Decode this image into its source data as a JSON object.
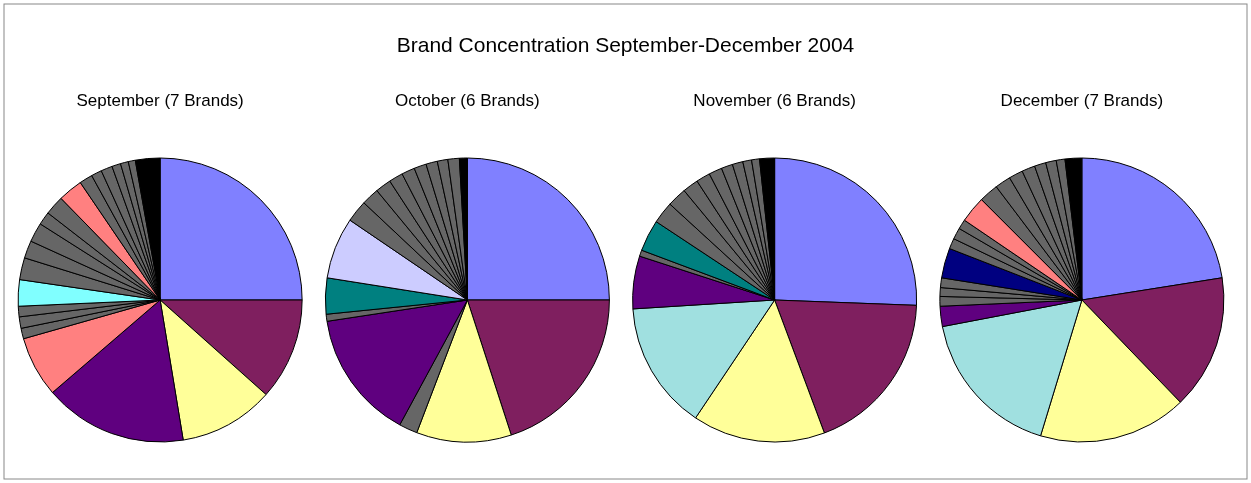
{
  "chart_data": [
    {
      "type": "pie",
      "title": "September (7 Brands)",
      "annotations": [
        "Brand Concentration September-December 2004"
      ],
      "categories": [
        null,
        null,
        null,
        null,
        null,
        null,
        null,
        null,
        null,
        null,
        null,
        null,
        null,
        null,
        null,
        null,
        null,
        null,
        null,
        null,
        null,
        null
      ],
      "values": [
        25,
        11.6,
        10.8,
        16.3,
        6.9,
        1.2,
        1.3,
        1.2,
        3.0,
        2.5,
        2.0,
        2.2,
        1.5,
        2.2,
        2.8,
        1.5,
        1.2,
        1.3,
        1.0,
        0.9,
        0.8,
        2.8
      ],
      "colors": [
        "#8080ff",
        "#7f1f5f",
        "#ffff99",
        "#5f007f",
        "#ff8080",
        "#666666",
        "#666666",
        "#666666",
        "#80ffff",
        "#666666",
        "#666666",
        "#666666",
        "#666666",
        "#666666",
        "#ff8080",
        "#666666",
        "#666666",
        "#666666",
        "#666666",
        "#666666",
        "#666666",
        "#000000"
      ]
    },
    {
      "type": "pie",
      "title": "October (6 Brands)",
      "categories": [
        null,
        null,
        null,
        null,
        null,
        null,
        null,
        null,
        null,
        null,
        null,
        null,
        null,
        null,
        null,
        null,
        null,
        null
      ],
      "values": [
        25,
        20,
        10.8,
        2.1,
        14.7,
        0.8,
        4.1,
        7.0,
        2.5,
        2.0,
        1.8,
        1.6,
        1.5,
        1.4,
        1.3,
        1.2,
        1.3,
        0.9
      ],
      "colors": [
        "#8080ff",
        "#7f1f5f",
        "#ffff99",
        "#666666",
        "#5f007f",
        "#666666",
        "#008080",
        "#ccccff",
        "#666666",
        "#666666",
        "#666666",
        "#666666",
        "#666666",
        "#666666",
        "#666666",
        "#666666",
        "#666666",
        "#000000"
      ]
    },
    {
      "type": "pie",
      "title": "November (6 Brands)",
      "categories": [
        null,
        null,
        null,
        null,
        null,
        null,
        null,
        null,
        null,
        null,
        null,
        null,
        null,
        null,
        null,
        null,
        null
      ],
      "values": [
        25.6,
        18.7,
        15.1,
        14.6,
        6.0,
        0.7,
        3.6,
        2.5,
        2.2,
        1.8,
        1.6,
        1.5,
        1.3,
        1.2,
        1.0,
        0.9,
        1.7
      ],
      "colors": [
        "#8080ff",
        "#7f1f5f",
        "#ffff99",
        "#a0e0e0",
        "#5f007f",
        "#666666",
        "#008080",
        "#666666",
        "#666666",
        "#666666",
        "#666666",
        "#666666",
        "#666666",
        "#666666",
        "#666666",
        "#666666",
        "#000000"
      ]
    },
    {
      "type": "pie",
      "title": "December (7 Brands)",
      "categories": [
        null,
        null,
        null,
        null,
        null,
        null,
        null,
        null,
        null,
        null,
        null,
        null,
        null,
        null,
        null,
        null,
        null,
        null,
        null,
        null,
        null
      ],
      "values": [
        22.5,
        15.3,
        16.9,
        17.3,
        2.3,
        1.1,
        1.0,
        1.1,
        3.4,
        1.2,
        1.3,
        1.1,
        3.0,
        2.2,
        1.8,
        1.6,
        1.5,
        1.3,
        1.2,
        1.0,
        1.9
      ],
      "colors": [
        "#8080ff",
        "#7f1f5f",
        "#ffff99",
        "#a0e0e0",
        "#5f007f",
        "#666666",
        "#666666",
        "#666666",
        "#000080",
        "#666666",
        "#666666",
        "#666666",
        "#ff8080",
        "#666666",
        "#666666",
        "#666666",
        "#666666",
        "#666666",
        "#666666",
        "#666666",
        "#000000"
      ]
    }
  ]
}
